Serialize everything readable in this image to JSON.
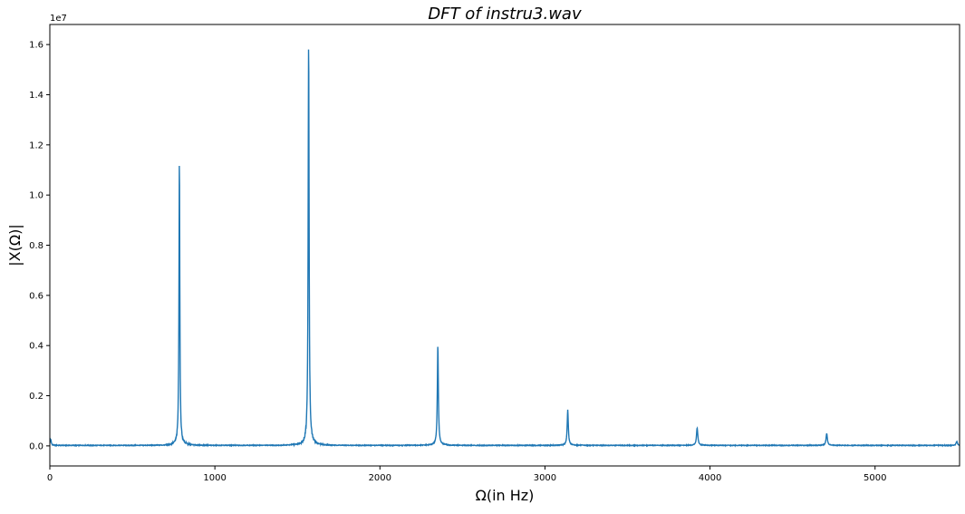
{
  "chart_data": {
    "type": "line",
    "title": "DFT of instru3.wav",
    "xlabel": "Ω(in Hz)",
    "ylabel": "|X(Ω)|",
    "y_offset_label": "1e7",
    "xlim": [
      0,
      5512
    ],
    "ylim": [
      -0.08,
      1.68
    ],
    "x_ticks": [
      0,
      1000,
      2000,
      3000,
      4000,
      5000
    ],
    "x_tick_labels": [
      "0",
      "1000",
      "2000",
      "3000",
      "4000",
      "5000"
    ],
    "y_ticks": [
      0.0,
      0.2,
      0.4,
      0.6,
      0.8,
      1.0,
      1.2,
      1.4,
      1.6
    ],
    "y_tick_labels": [
      "0.0",
      "0.2",
      "0.4",
      "0.6",
      "0.8",
      "1.0",
      "1.2",
      "1.4",
      "1.6"
    ],
    "grid": false,
    "color": "#1f77b4",
    "y_units_multiplier": 10000000,
    "baseline": 0.002,
    "peaks": [
      {
        "x": 5,
        "y": 0.025,
        "width": 12
      },
      {
        "x": 785,
        "y": 1.14,
        "width": 9
      },
      {
        "x": 1568,
        "y": 1.61,
        "width": 10
      },
      {
        "x": 2351,
        "y": 0.395,
        "width": 11
      },
      {
        "x": 3138,
        "y": 0.14,
        "width": 12
      },
      {
        "x": 3922,
        "y": 0.07,
        "width": 14
      },
      {
        "x": 4707,
        "y": 0.048,
        "width": 14
      },
      {
        "x": 5495,
        "y": 0.015,
        "width": 14
      }
    ]
  }
}
